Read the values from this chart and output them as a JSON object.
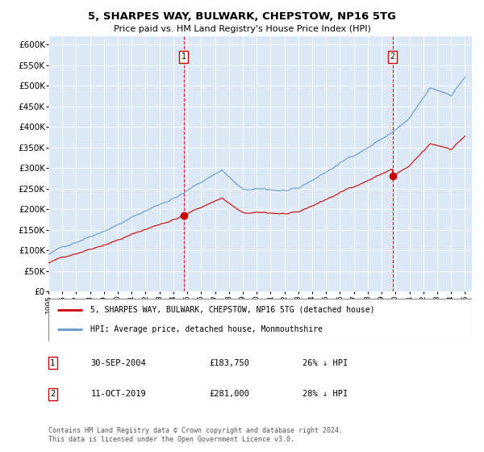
{
  "title": "5, SHARPES WAY, BULWARK, CHEPSTOW, NP16 5TG",
  "subtitle": "Price paid vs. HM Land Registry's House Price Index (HPI)",
  "ylabel_ticks": [
    "£0",
    "£50K",
    "£100K",
    "£150K",
    "£200K",
    "£250K",
    "£300K",
    "£350K",
    "£400K",
    "£450K",
    "£500K",
    "£550K",
    "£600K"
  ],
  "ylim": [
    0,
    620000
  ],
  "xlim_start": 1995.0,
  "xlim_end": 2025.5,
  "bg_color": "#dce9f5",
  "grid_color": "#c8d8e8",
  "line1_color": "#cc0000",
  "line2_color": "#6699cc",
  "marker1_date": 2004.75,
  "marker2_date": 2019.78,
  "sale1_date": "30-SEP-2004",
  "sale1_price": "£183,750",
  "sale1_pct": "26% ↓ HPI",
  "sale2_date": "11-OCT-2019",
  "sale2_price": "£281,000",
  "sale2_pct": "28% ↓ HPI",
  "legend1_label": "5, SHARPES WAY, BULWARK, CHEPSTOW, NP16 5TG (detached house)",
  "legend2_label": "HPI: Average price, detached house, Monmouthshire",
  "footer": "Contains HM Land Registry data © Crown copyright and database right 2024.\nThis data is licensed under the Open Government Licence v3.0."
}
